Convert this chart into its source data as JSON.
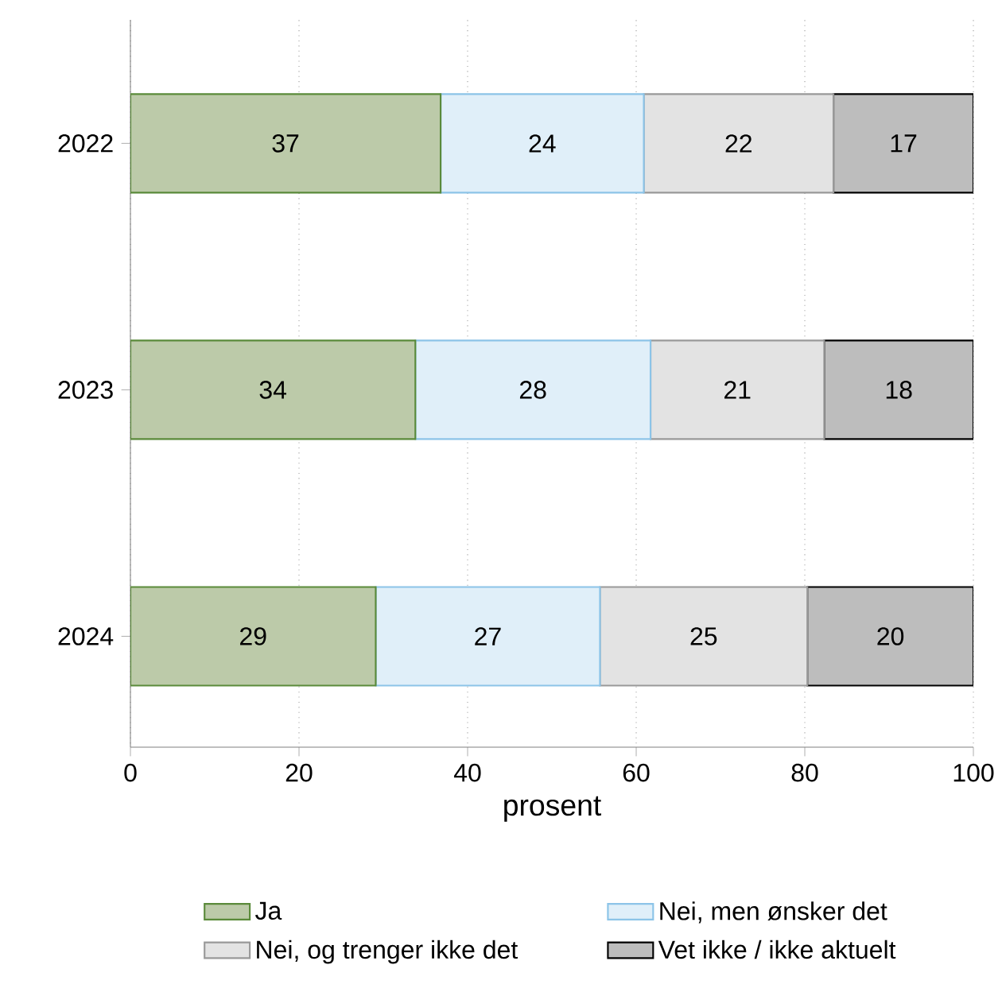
{
  "chart_data": {
    "type": "bar",
    "orientation": "horizontal",
    "stacked": true,
    "xlabel": "prosent",
    "categories": [
      "2022",
      "2023",
      "2024"
    ],
    "xlim": [
      0,
      100
    ],
    "xticks": [
      0,
      20,
      40,
      60,
      80,
      100
    ],
    "grid": "x",
    "legend": "bottom",
    "series": [
      {
        "name": "Ja",
        "color": "#bccaa9",
        "values": [
          36.8,
          33.8,
          29.1
        ],
        "value_labels": [
          "37",
          "34",
          "29"
        ]
      },
      {
        "name": "Nei, men ønsker det",
        "color": "#e0eff9",
        "values": [
          24.1,
          27.9,
          26.6
        ],
        "value_labels": [
          "24",
          "28",
          "27"
        ]
      },
      {
        "name": "Nei, og trenger ikke det",
        "color": "#e3e3e3",
        "values": [
          22.5,
          20.6,
          24.6
        ],
        "value_labels": [
          "22",
          "21",
          "25"
        ]
      },
      {
        "name": "Vet ikke / ikke aktuelt",
        "color": "#bdbdbd",
        "values": [
          16.6,
          17.7,
          19.7
        ],
        "value_labels": [
          "17",
          "18",
          "20"
        ]
      }
    ]
  }
}
